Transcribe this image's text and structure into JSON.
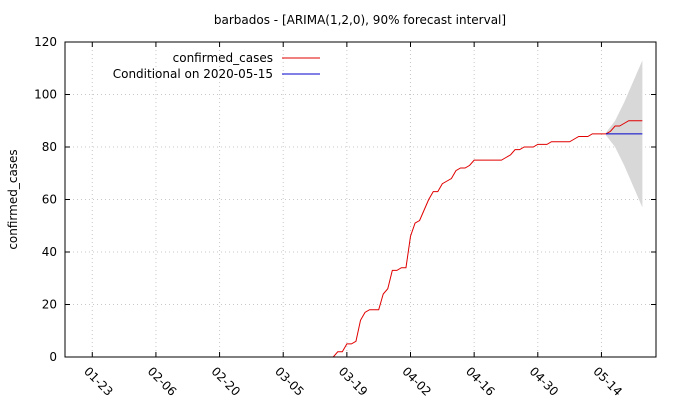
{
  "chart_data": {
    "type": "line",
    "title": "barbados -  [ARIMA(1,2,0), 90% forecast interval]",
    "xlabel": "",
    "ylabel": "confirmed_cases",
    "ylim": [
      0,
      120
    ],
    "yticks": [
      0,
      20,
      40,
      60,
      80,
      100,
      120
    ],
    "xlim": [
      "2020-01-17",
      "2020-05-26"
    ],
    "xtick_labels": [
      "01-23",
      "02-06",
      "02-20",
      "03-05",
      "03-19",
      "04-02",
      "04-16",
      "04-30",
      "05-14"
    ],
    "xtick_dates": [
      "2020-01-23",
      "2020-02-06",
      "2020-02-20",
      "2020-03-05",
      "2020-03-19",
      "2020-04-02",
      "2020-04-16",
      "2020-04-30",
      "2020-05-14"
    ],
    "grid": true,
    "legend": "top-left",
    "series": [
      {
        "name": "confirmed_cases",
        "color": "#e00000",
        "x": [
          "2020-01-22",
          "2020-03-15",
          "2020-03-16",
          "2020-03-17",
          "2020-03-18",
          "2020-03-19",
          "2020-03-20",
          "2020-03-21",
          "2020-03-22",
          "2020-03-23",
          "2020-03-24",
          "2020-03-25",
          "2020-03-26",
          "2020-03-27",
          "2020-03-28",
          "2020-03-29",
          "2020-03-30",
          "2020-03-31",
          "2020-04-01",
          "2020-04-02",
          "2020-04-03",
          "2020-04-04",
          "2020-04-05",
          "2020-04-06",
          "2020-04-07",
          "2020-04-08",
          "2020-04-09",
          "2020-04-10",
          "2020-04-11",
          "2020-04-12",
          "2020-04-13",
          "2020-04-14",
          "2020-04-15",
          "2020-04-16",
          "2020-04-17",
          "2020-04-18",
          "2020-04-19",
          "2020-04-20",
          "2020-04-21",
          "2020-04-22",
          "2020-04-23",
          "2020-04-24",
          "2020-04-25",
          "2020-04-26",
          "2020-04-27",
          "2020-04-28",
          "2020-04-29",
          "2020-04-30",
          "2020-05-01",
          "2020-05-02",
          "2020-05-03",
          "2020-05-04",
          "2020-05-05",
          "2020-05-06",
          "2020-05-07",
          "2020-05-08",
          "2020-05-09",
          "2020-05-10",
          "2020-05-11",
          "2020-05-12",
          "2020-05-13",
          "2020-05-14",
          "2020-05-15",
          "2020-05-16",
          "2020-05-17",
          "2020-05-18",
          "2020-05-19",
          "2020-05-20",
          "2020-05-21",
          "2020-05-22",
          "2020-05-23"
        ],
        "y": [
          0,
          0,
          0,
          2,
          2,
          5,
          5,
          6,
          14,
          17,
          18,
          18,
          18,
          24,
          26,
          33,
          33,
          34,
          34,
          46,
          51,
          52,
          56,
          60,
          63,
          63,
          66,
          67,
          68,
          71,
          72,
          72,
          73,
          75,
          75,
          75,
          75,
          75,
          75,
          75,
          76,
          77,
          79,
          79,
          80,
          80,
          80,
          81,
          81,
          81,
          82,
          82,
          82,
          82,
          82,
          83,
          84,
          84,
          84,
          85,
          85,
          85,
          85,
          86,
          88,
          88,
          89,
          90,
          90,
          90,
          90
        ]
      },
      {
        "name": "Conditional on 2020-05-15",
        "color": "#0000cc",
        "x": [
          "2020-05-15",
          "2020-05-23"
        ],
        "y": [
          85,
          85
        ]
      }
    ],
    "forecast_interval": {
      "x": [
        "2020-05-15",
        "2020-05-17",
        "2020-05-19",
        "2020-05-21",
        "2020-05-23"
      ],
      "lower": [
        84.5,
        80,
        73,
        65,
        57
      ],
      "upper": [
        85.5,
        90,
        97,
        105,
        113
      ],
      "color": "#d8d8d8"
    }
  }
}
